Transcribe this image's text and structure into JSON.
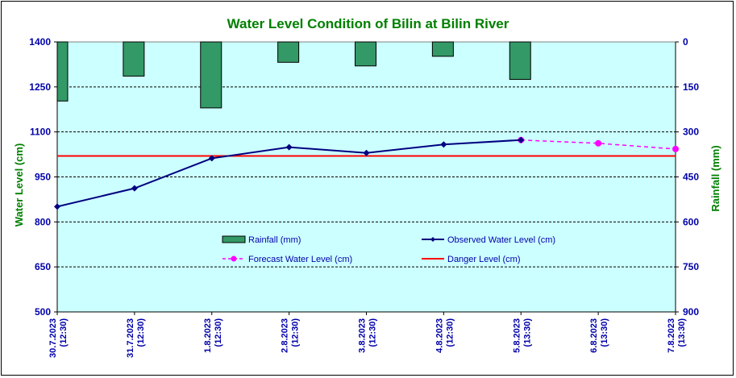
{
  "chart_data": {
    "type": "combo",
    "title": "Water Level Condition  of Bilin at Bilin River",
    "ylabel_left": "Water Level (cm)",
    "ylabel_right": "Rainfall (mm)",
    "ylim_left": [
      500,
      1400
    ],
    "ylim_right": [
      0,
      900
    ],
    "yticks_left": [
      500,
      650,
      800,
      950,
      1100,
      1250,
      1400
    ],
    "yticks_right": [
      0,
      150,
      300,
      450,
      600,
      750,
      900
    ],
    "right_axis_inverted": true,
    "grid": "horizontal dashed",
    "legend_position": "center",
    "categories": [
      [
        "30.7.2023",
        "(12:30)"
      ],
      [
        "31.7.2023",
        "(12:30)"
      ],
      [
        "1.8.2023",
        "(12:30)"
      ],
      [
        "2.8.2023",
        "(12:30)"
      ],
      [
        "3.8.2023",
        "(12:30)"
      ],
      [
        "4.8.2023",
        "(12:30)"
      ],
      [
        "5.8.2023",
        "(13:30)"
      ],
      [
        "6.8.2023",
        "(13:30)"
      ],
      [
        "7.8.2023",
        "(13:30)"
      ]
    ],
    "series": [
      {
        "name": "Rainfall (mm)",
        "type": "bar",
        "axis": "right",
        "color": "#339966",
        "values": [
          197,
          114,
          220,
          68,
          80,
          48,
          125,
          null,
          null
        ]
      },
      {
        "name": "Observed Water Level (cm)",
        "type": "line",
        "axis": "left",
        "color": "#000080",
        "values": [
          851,
          912,
          1012,
          1049,
          1030,
          1058,
          1073,
          null,
          null
        ]
      },
      {
        "name": "Forecast Water Level (cm)",
        "type": "line-dashed",
        "axis": "left",
        "color": "#ff00ff",
        "values": [
          null,
          null,
          null,
          null,
          null,
          null,
          1073,
          1062,
          1043
        ]
      },
      {
        "name": "Danger Level (cm)",
        "type": "hline",
        "axis": "left",
        "color": "#ff0000",
        "value": 1020
      }
    ]
  }
}
